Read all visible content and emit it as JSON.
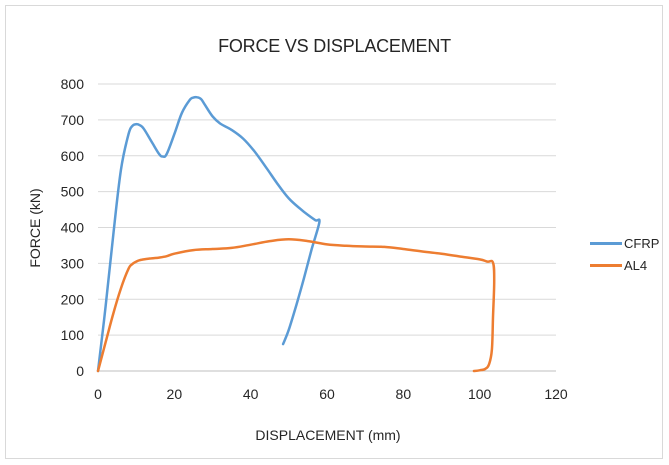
{
  "chart_data": {
    "type": "line",
    "title": "FORCE VS DISPLACEMENT",
    "xlabel": "DISPLACEMENT (mm)",
    "ylabel": "FORCE (kN)",
    "xlim": [
      0,
      120
    ],
    "ylim": [
      0,
      800
    ],
    "xticks": [
      0,
      20,
      40,
      60,
      80,
      100,
      120
    ],
    "yticks": [
      0,
      100,
      200,
      300,
      400,
      500,
      600,
      700,
      800
    ],
    "grid": "horizontal",
    "legend_position": "right",
    "series": [
      {
        "name": "CFRP",
        "color": "#5b9bd5",
        "x": [
          0,
          2,
          4,
          6,
          8,
          9,
          10,
          11,
          12,
          14,
          16,
          17,
          18,
          20,
          22,
          24,
          25,
          26,
          27,
          28,
          30,
          32,
          35,
          38,
          41,
          44,
          47,
          50,
          53,
          55,
          57,
          58,
          56,
          54,
          52,
          50,
          48.5
        ],
        "y": [
          0,
          180,
          380,
          560,
          660,
          683,
          688,
          685,
          675,
          640,
          605,
          598,
          605,
          660,
          720,
          755,
          762,
          763,
          758,
          742,
          710,
          690,
          672,
          648,
          612,
          568,
          522,
          481,
          452,
          435,
          420,
          415,
          340,
          260,
          185,
          115,
          75
        ]
      },
      {
        "name": "AL4",
        "color": "#ed7d31",
        "x": [
          0,
          2,
          4,
          6,
          8,
          9,
          10,
          11,
          12,
          14,
          16,
          18,
          20,
          25,
          30,
          35,
          40,
          45,
          50,
          55,
          60,
          65,
          70,
          75,
          80,
          85,
          90,
          95,
          100,
          102,
          103.5,
          103.8,
          103.5,
          103.2,
          102.5,
          101.5,
          100,
          98.5
        ],
        "y": [
          0,
          80,
          160,
          230,
          285,
          298,
          305,
          309,
          311,
          314,
          316,
          320,
          327,
          337,
          340,
          343,
          352,
          362,
          367,
          362,
          353,
          349,
          347,
          346,
          340,
          333,
          327,
          319,
          311,
          305,
          302,
          250,
          150,
          60,
          20,
          6,
          2,
          0
        ]
      }
    ]
  }
}
